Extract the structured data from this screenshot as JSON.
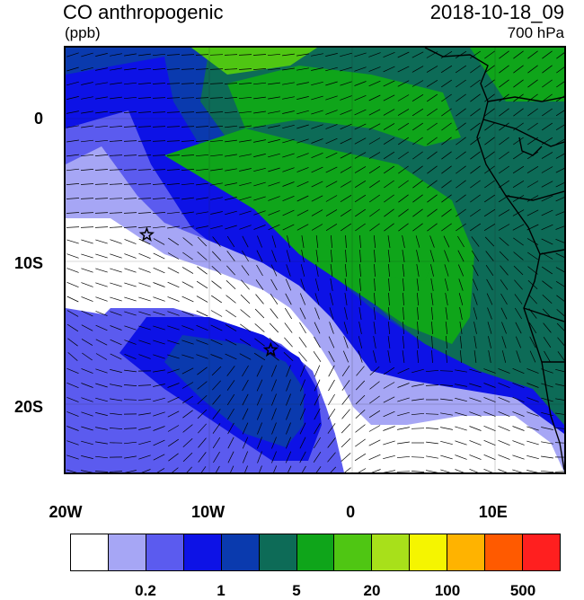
{
  "title": {
    "field": "CO anthropogenic",
    "units": "(ppb)",
    "datetime": "2018-10-18_09",
    "level": "700 hPa"
  },
  "axes": {
    "lat_labels": [
      {
        "text": "0",
        "lat": 0
      },
      {
        "text": "10S",
        "lat": -10
      },
      {
        "text": "20S",
        "lat": -20
      }
    ],
    "lon_labels": [
      {
        "text": "20W",
        "lon": -20
      },
      {
        "text": "10W",
        "lon": -10
      },
      {
        "text": "0",
        "lon": 0
      },
      {
        "text": "10E",
        "lon": 10
      }
    ],
    "lon_range": [
      -20,
      15
    ],
    "lat_range": [
      -24.5,
      5
    ]
  },
  "colorbar": {
    "colors": [
      "#ffffff",
      "#a6a6f5",
      "#5b5bef",
      "#0d12e6",
      "#0a3aae",
      "#0d6b57",
      "#0fa51a",
      "#4fc613",
      "#a8e01a",
      "#f5f500",
      "#ffb300",
      "#ff5a00",
      "#ff1f1f"
    ],
    "labels": [
      {
        "text": "0.2",
        "boundary": 2
      },
      {
        "text": "1",
        "boundary": 4
      },
      {
        "text": "5",
        "boundary": 6
      },
      {
        "text": "20",
        "boundary": 8
      },
      {
        "text": "100",
        "boundary": 10
      },
      {
        "text": "500",
        "boundary": 12
      }
    ]
  },
  "markers": [
    {
      "name": "star",
      "lon": -14.3,
      "lat": -8
    },
    {
      "name": "star",
      "lon": -5.6,
      "lat": -16
    }
  ]
}
